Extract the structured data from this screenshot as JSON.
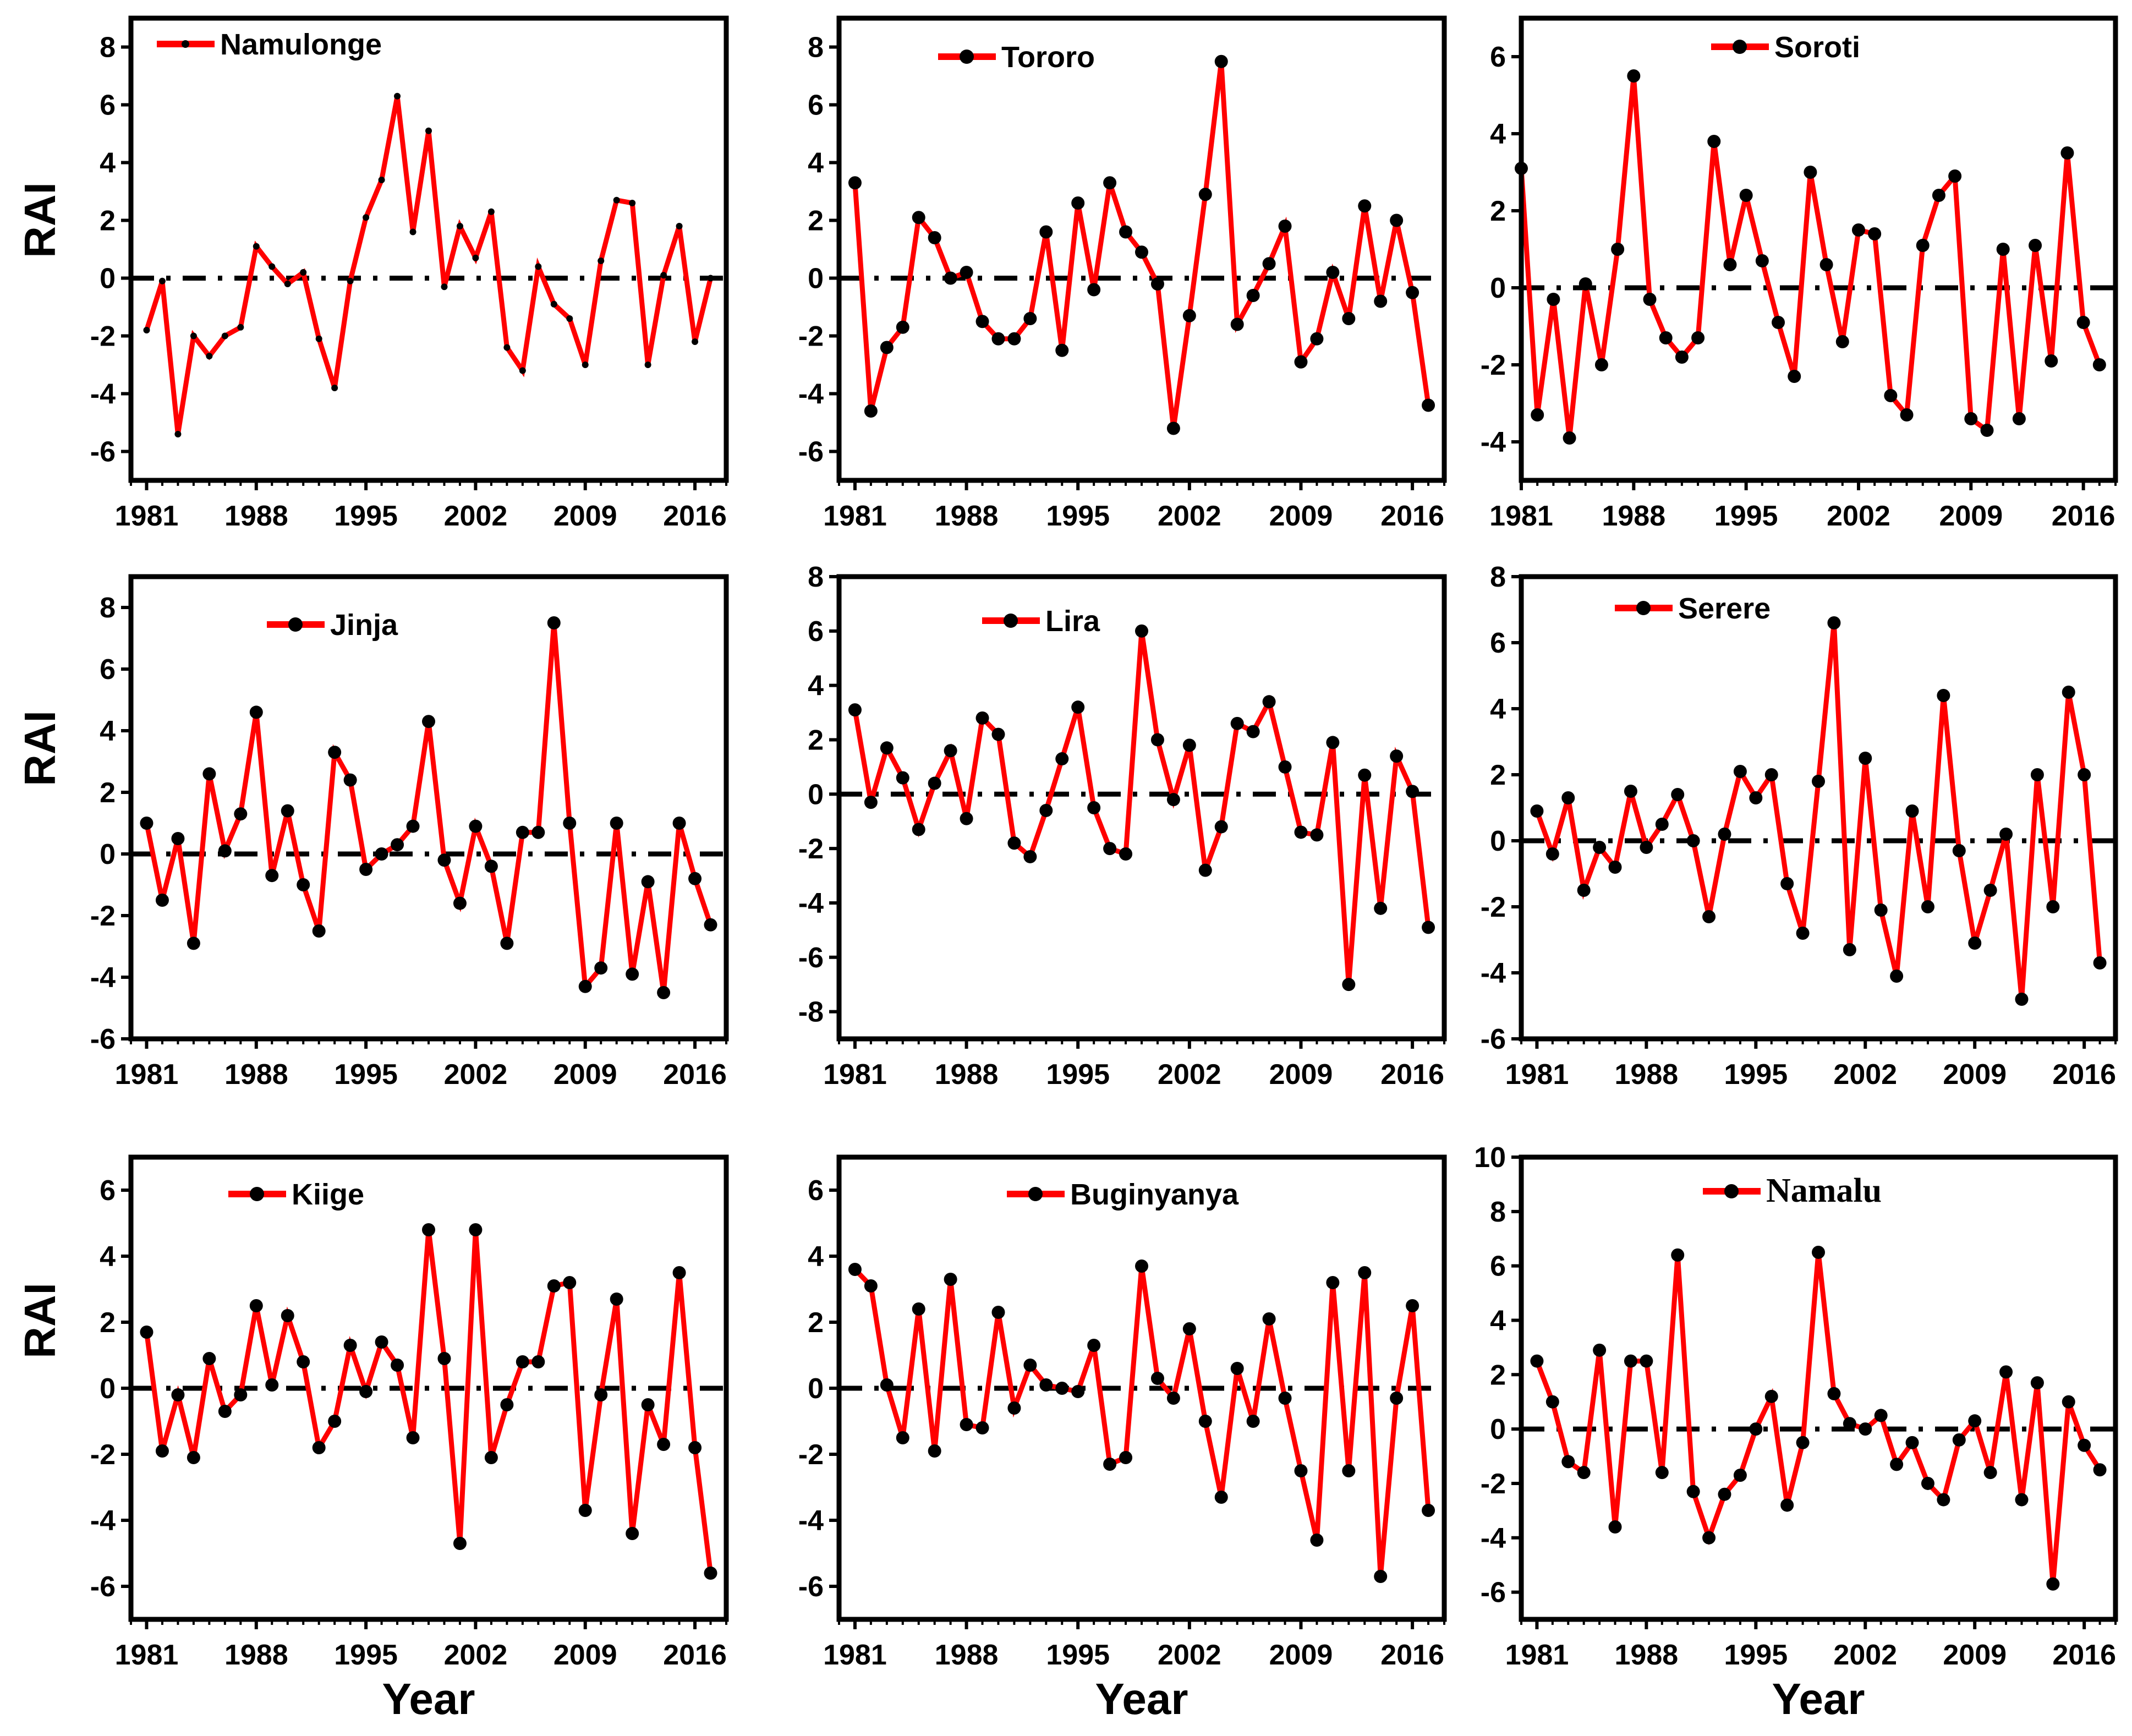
{
  "figure": {
    "ylabel": "RAI",
    "xlabel": "Year",
    "colors": {
      "line": "#ff0000",
      "marker": "#000000",
      "axis": "#000000"
    }
  },
  "chart_data": [
    {
      "type": "line",
      "title": "",
      "legend": "Namulonge",
      "legend_position": "top-left",
      "ylim": [
        -7,
        9
      ],
      "yticks": [
        -6,
        -4,
        -2,
        0,
        2,
        4,
        6,
        8
      ],
      "xlim": [
        1980,
        2018
      ],
      "xticks": [
        1981,
        1988,
        1995,
        2002,
        2009,
        2016
      ],
      "xlabel": "",
      "ylabel": "RAI",
      "x": [
        1981,
        1982,
        1983,
        1984,
        1985,
        1986,
        1987,
        1988,
        1989,
        1990,
        1991,
        1992,
        1993,
        1994,
        1995,
        1996,
        1997,
        1998,
        1999,
        2000,
        2001,
        2002,
        2003,
        2004,
        2005,
        2006,
        2007,
        2008,
        2009,
        2010,
        2011,
        2012,
        2013,
        2014,
        2015,
        2016,
        2017
      ],
      "values": [
        -1.8,
        -0.1,
        -5.4,
        -2.0,
        -2.7,
        -2.0,
        -1.7,
        1.1,
        0.4,
        -0.2,
        0.2,
        -2.1,
        -3.8,
        -0.1,
        2.1,
        3.4,
        6.3,
        1.6,
        5.1,
        -0.3,
        1.8,
        0.7,
        2.3,
        -2.4,
        -3.2,
        0.4,
        -0.9,
        -1.4,
        -3.0,
        0.6,
        2.7,
        2.6,
        -3.0,
        0.1,
        1.8,
        -2.2,
        0.0
      ]
    },
    {
      "type": "line",
      "title": "",
      "legend": "Tororo",
      "legend_position": "top-center",
      "ylim": [
        -7,
        9
      ],
      "yticks": [
        -6,
        -4,
        -2,
        0,
        2,
        4,
        6,
        8
      ],
      "xlim": [
        1980,
        2018
      ],
      "xticks": [
        1981,
        1988,
        1995,
        2002,
        2009,
        2016
      ],
      "xlabel": "",
      "ylabel": "",
      "x": [
        1981,
        1982,
        1983,
        1984,
        1985,
        1986,
        1987,
        1988,
        1989,
        1990,
        1991,
        1992,
        1993,
        1994,
        1995,
        1996,
        1997,
        1998,
        1999,
        2000,
        2001,
        2002,
        2003,
        2004,
        2005,
        2006,
        2007,
        2008,
        2009,
        2010,
        2011,
        2012,
        2013,
        2014,
        2015,
        2016,
        2017
      ],
      "values": [
        3.3,
        -4.6,
        -2.4,
        -1.7,
        2.1,
        1.4,
        0.0,
        0.2,
        -1.5,
        -2.1,
        -2.1,
        -1.4,
        1.6,
        -2.5,
        2.6,
        -0.4,
        3.3,
        1.6,
        0.9,
        -0.2,
        -5.2,
        -1.3,
        2.9,
        7.5,
        -1.6,
        -0.6,
        0.5,
        1.8,
        -2.9,
        -2.1,
        0.2,
        -1.4,
        2.5,
        -0.8,
        2.0,
        -0.5,
        -4.4
      ]
    },
    {
      "type": "line",
      "title": "",
      "legend": "Soroti",
      "legend_position": "top-right",
      "ylim": [
        -5,
        7
      ],
      "yticks": [
        -4,
        -2,
        0,
        2,
        4,
        6
      ],
      "xlim": [
        1981,
        2018
      ],
      "xticks": [
        1981,
        1988,
        1995,
        2002,
        2009,
        2016
      ],
      "xlabel": "",
      "ylabel": "",
      "x": [
        1981,
        1982,
        1983,
        1984,
        1985,
        1986,
        1987,
        1988,
        1989,
        1990,
        1991,
        1992,
        1993,
        1994,
        1995,
        1996,
        1997,
        1998,
        1999,
        2000,
        2001,
        2002,
        2003,
        2004,
        2005,
        2006,
        2007,
        2008,
        2009,
        2010,
        2011,
        2012,
        2013,
        2014,
        2015,
        2016,
        2017
      ],
      "values": [
        3.1,
        -3.3,
        -0.3,
        -3.9,
        0.1,
        -2.0,
        1.0,
        5.5,
        -0.3,
        -1.3,
        -1.8,
        -1.3,
        3.8,
        0.6,
        2.4,
        0.7,
        -0.9,
        -2.3,
        3.0,
        0.6,
        -1.4,
        1.5,
        1.4,
        -2.8,
        -3.3,
        1.1,
        2.4,
        2.9,
        -3.4,
        -3.7,
        1.0,
        -3.4,
        1.1,
        -1.9,
        3.5,
        -0.9,
        -2.0
      ]
    },
    {
      "type": "line",
      "title": "",
      "legend": "Jinja",
      "legend_position": "top-left",
      "ylim": [
        -6,
        9
      ],
      "yticks": [
        -6,
        -4,
        -2,
        0,
        2,
        4,
        6,
        8
      ],
      "xlim": [
        1980,
        2018
      ],
      "xticks": [
        1981,
        1988,
        1995,
        2002,
        2009,
        2016
      ],
      "xlabel": "",
      "ylabel": "RAI",
      "x": [
        1981,
        1982,
        1983,
        1984,
        1985,
        1986,
        1987,
        1988,
        1989,
        1990,
        1991,
        1992,
        1993,
        1994,
        1995,
        1996,
        1997,
        1998,
        1999,
        2000,
        2001,
        2002,
        2003,
        2004,
        2005,
        2006,
        2007,
        2008,
        2009,
        2010,
        2011,
        2012,
        2013,
        2014,
        2015,
        2016,
        2017
      ],
      "values": [
        1.0,
        -1.5,
        0.5,
        -2.9,
        2.6,
        0.1,
        1.3,
        4.6,
        -0.7,
        1.4,
        -1.0,
        -2.5,
        3.3,
        2.4,
        -0.5,
        0.0,
        0.3,
        0.9,
        4.3,
        -0.2,
        -1.6,
        0.9,
        -0.4,
        -2.9,
        0.7,
        0.7,
        7.5,
        1.0,
        -4.3,
        -3.7,
        1.0,
        -3.9,
        -0.9,
        -4.5,
        1.0,
        -0.8,
        -2.3
      ]
    },
    {
      "type": "line",
      "title": "",
      "legend": "Lira",
      "legend_position": "top-left",
      "ylim": [
        -9,
        8
      ],
      "yticks": [
        -8,
        -6,
        -4,
        -2,
        0,
        2,
        4,
        6,
        8
      ],
      "xlim": [
        1980,
        2018
      ],
      "xticks": [
        1981,
        1988,
        1995,
        2002,
        2009,
        2016
      ],
      "xlabel": "",
      "ylabel": "",
      "x": [
        1981,
        1982,
        1983,
        1984,
        1985,
        1986,
        1987,
        1988,
        1989,
        1990,
        1991,
        1992,
        1993,
        1994,
        1995,
        1996,
        1997,
        1998,
        1999,
        2000,
        2001,
        2002,
        2003,
        2004,
        2005,
        2006,
        2007,
        2008,
        2009,
        2010,
        2011,
        2012,
        2013,
        2014,
        2015,
        2016,
        2017
      ],
      "values": [
        3.1,
        -0.3,
        1.7,
        0.6,
        -1.3,
        0.4,
        1.6,
        -0.9,
        2.8,
        2.2,
        -1.8,
        -2.3,
        -0.6,
        1.3,
        3.2,
        -0.5,
        -2.0,
        -2.2,
        6.0,
        2.0,
        -0.2,
        1.8,
        -2.8,
        -1.2,
        2.6,
        2.3,
        3.4,
        1.0,
        -1.4,
        -1.5,
        1.9,
        -7.0,
        0.7,
        -4.2,
        1.4,
        0.1,
        -4.9
      ]
    },
    {
      "type": "line",
      "title": "",
      "legend": "Serere",
      "legend_position": "top-left",
      "ylim": [
        -6,
        8
      ],
      "yticks": [
        -6,
        -4,
        -2,
        0,
        2,
        4,
        6,
        8
      ],
      "xlim": [
        1980,
        2018
      ],
      "xticks": [
        1981,
        1988,
        1995,
        2002,
        2009,
        2016
      ],
      "xlabel": "",
      "ylabel": "",
      "x": [
        1981,
        1982,
        1983,
        1984,
        1985,
        1986,
        1987,
        1988,
        1989,
        1990,
        1991,
        1992,
        1993,
        1994,
        1995,
        1996,
        1997,
        1998,
        1999,
        2000,
        2001,
        2002,
        2003,
        2004,
        2005,
        2006,
        2007,
        2008,
        2009,
        2010,
        2011,
        2012,
        2013,
        2014,
        2015,
        2016,
        2017
      ],
      "values": [
        0.9,
        -0.4,
        1.3,
        -1.5,
        -0.2,
        -0.8,
        1.5,
        -0.2,
        0.5,
        1.4,
        0.0,
        -2.3,
        0.2,
        2.1,
        1.3,
        2.0,
        -1.3,
        -2.8,
        1.8,
        6.6,
        -3.3,
        2.5,
        -2.1,
        -4.1,
        0.9,
        -2.0,
        4.4,
        -0.3,
        -3.1,
        -1.5,
        0.2,
        -4.8,
        2.0,
        -2.0,
        4.5,
        2.0,
        -3.7
      ]
    },
    {
      "type": "line",
      "title": "",
      "legend": "Kiige",
      "legend_position": "top-left",
      "ylim": [
        -7,
        7
      ],
      "yticks": [
        -6,
        -4,
        -2,
        0,
        2,
        4,
        6
      ],
      "xlim": [
        1980,
        2018
      ],
      "xticks": [
        1981,
        1988,
        1995,
        2002,
        2009,
        2016
      ],
      "xlabel": "Year",
      "ylabel": "RAI",
      "x": [
        1981,
        1982,
        1983,
        1984,
        1985,
        1986,
        1987,
        1988,
        1989,
        1990,
        1991,
        1992,
        1993,
        1994,
        1995,
        1996,
        1997,
        1998,
        1999,
        2000,
        2001,
        2002,
        2003,
        2004,
        2005,
        2006,
        2007,
        2008,
        2009,
        2010,
        2011,
        2012,
        2013,
        2014,
        2015,
        2016,
        2017
      ],
      "values": [
        1.7,
        -1.9,
        -0.2,
        -2.1,
        0.9,
        -0.7,
        -0.2,
        2.5,
        0.1,
        2.2,
        0.8,
        -1.8,
        -1.0,
        1.3,
        -0.1,
        1.4,
        0.7,
        -1.5,
        4.8,
        0.9,
        -4.7,
        4.8,
        -2.1,
        -0.5,
        0.8,
        0.8,
        3.1,
        3.2,
        -3.7,
        -0.2,
        2.7,
        -4.4,
        -0.5,
        -1.7,
        3.5,
        -1.8,
        -5.6
      ]
    },
    {
      "type": "line",
      "title": "",
      "legend": "Buginyanya",
      "legend_position": "top-center",
      "ylim": [
        -7,
        7
      ],
      "yticks": [
        -6,
        -4,
        -2,
        0,
        2,
        4,
        6
      ],
      "xlim": [
        1980,
        2018
      ],
      "xticks": [
        1981,
        1988,
        1995,
        2002,
        2009,
        2016
      ],
      "xlabel": "Year",
      "ylabel": "",
      "x": [
        1981,
        1982,
        1983,
        1984,
        1985,
        1986,
        1987,
        1988,
        1989,
        1990,
        1991,
        1992,
        1993,
        1994,
        1995,
        1996,
        1997,
        1998,
        1999,
        2000,
        2001,
        2002,
        2003,
        2004,
        2005,
        2006,
        2007,
        2008,
        2009,
        2010,
        2011,
        2012,
        2013,
        2014,
        2015,
        2016,
        2017
      ],
      "values": [
        3.6,
        3.1,
        0.1,
        -1.5,
        2.4,
        -1.9,
        3.3,
        -1.1,
        -1.2,
        2.3,
        -0.6,
        0.7,
        0.1,
        0.0,
        -0.1,
        1.3,
        -2.3,
        -2.1,
        3.7,
        0.3,
        -0.3,
        1.8,
        -1.0,
        -3.3,
        0.6,
        -1.0,
        2.1,
        -0.3,
        -2.5,
        -4.6,
        3.2,
        -2.5,
        3.5,
        -5.7,
        -0.3,
        2.5,
        -3.7
      ]
    },
    {
      "type": "line",
      "title": "",
      "legend": "Namalu",
      "legend_position": "top-center",
      "ylim": [
        -7,
        10
      ],
      "yticks": [
        -6,
        -4,
        -2,
        0,
        2,
        4,
        6,
        8,
        10
      ],
      "xlim": [
        1980,
        2018
      ],
      "xticks": [
        1981,
        1988,
        1995,
        2002,
        2009,
        2016
      ],
      "xlabel": "Year",
      "ylabel": "",
      "x": [
        1981,
        1982,
        1983,
        1984,
        1985,
        1986,
        1987,
        1988,
        1989,
        1990,
        1991,
        1992,
        1993,
        1994,
        1995,
        1996,
        1997,
        1998,
        1999,
        2000,
        2001,
        2002,
        2003,
        2004,
        2005,
        2006,
        2007,
        2008,
        2009,
        2010,
        2011,
        2012,
        2013,
        2014,
        2015,
        2016,
        2017
      ],
      "values": [
        2.5,
        1.0,
        -1.2,
        -1.6,
        2.9,
        -3.6,
        2.5,
        2.5,
        -1.6,
        6.4,
        -2.3,
        -4.0,
        -2.4,
        -1.7,
        0.0,
        1.2,
        -2.8,
        -0.5,
        6.5,
        1.3,
        0.2,
        0.0,
        0.5,
        -1.3,
        -0.5,
        -2.0,
        -2.6,
        -0.4,
        0.3,
        -1.6,
        2.1,
        -2.6,
        1.7,
        -5.7,
        1.0,
        -0.6,
        -1.5
      ]
    }
  ]
}
